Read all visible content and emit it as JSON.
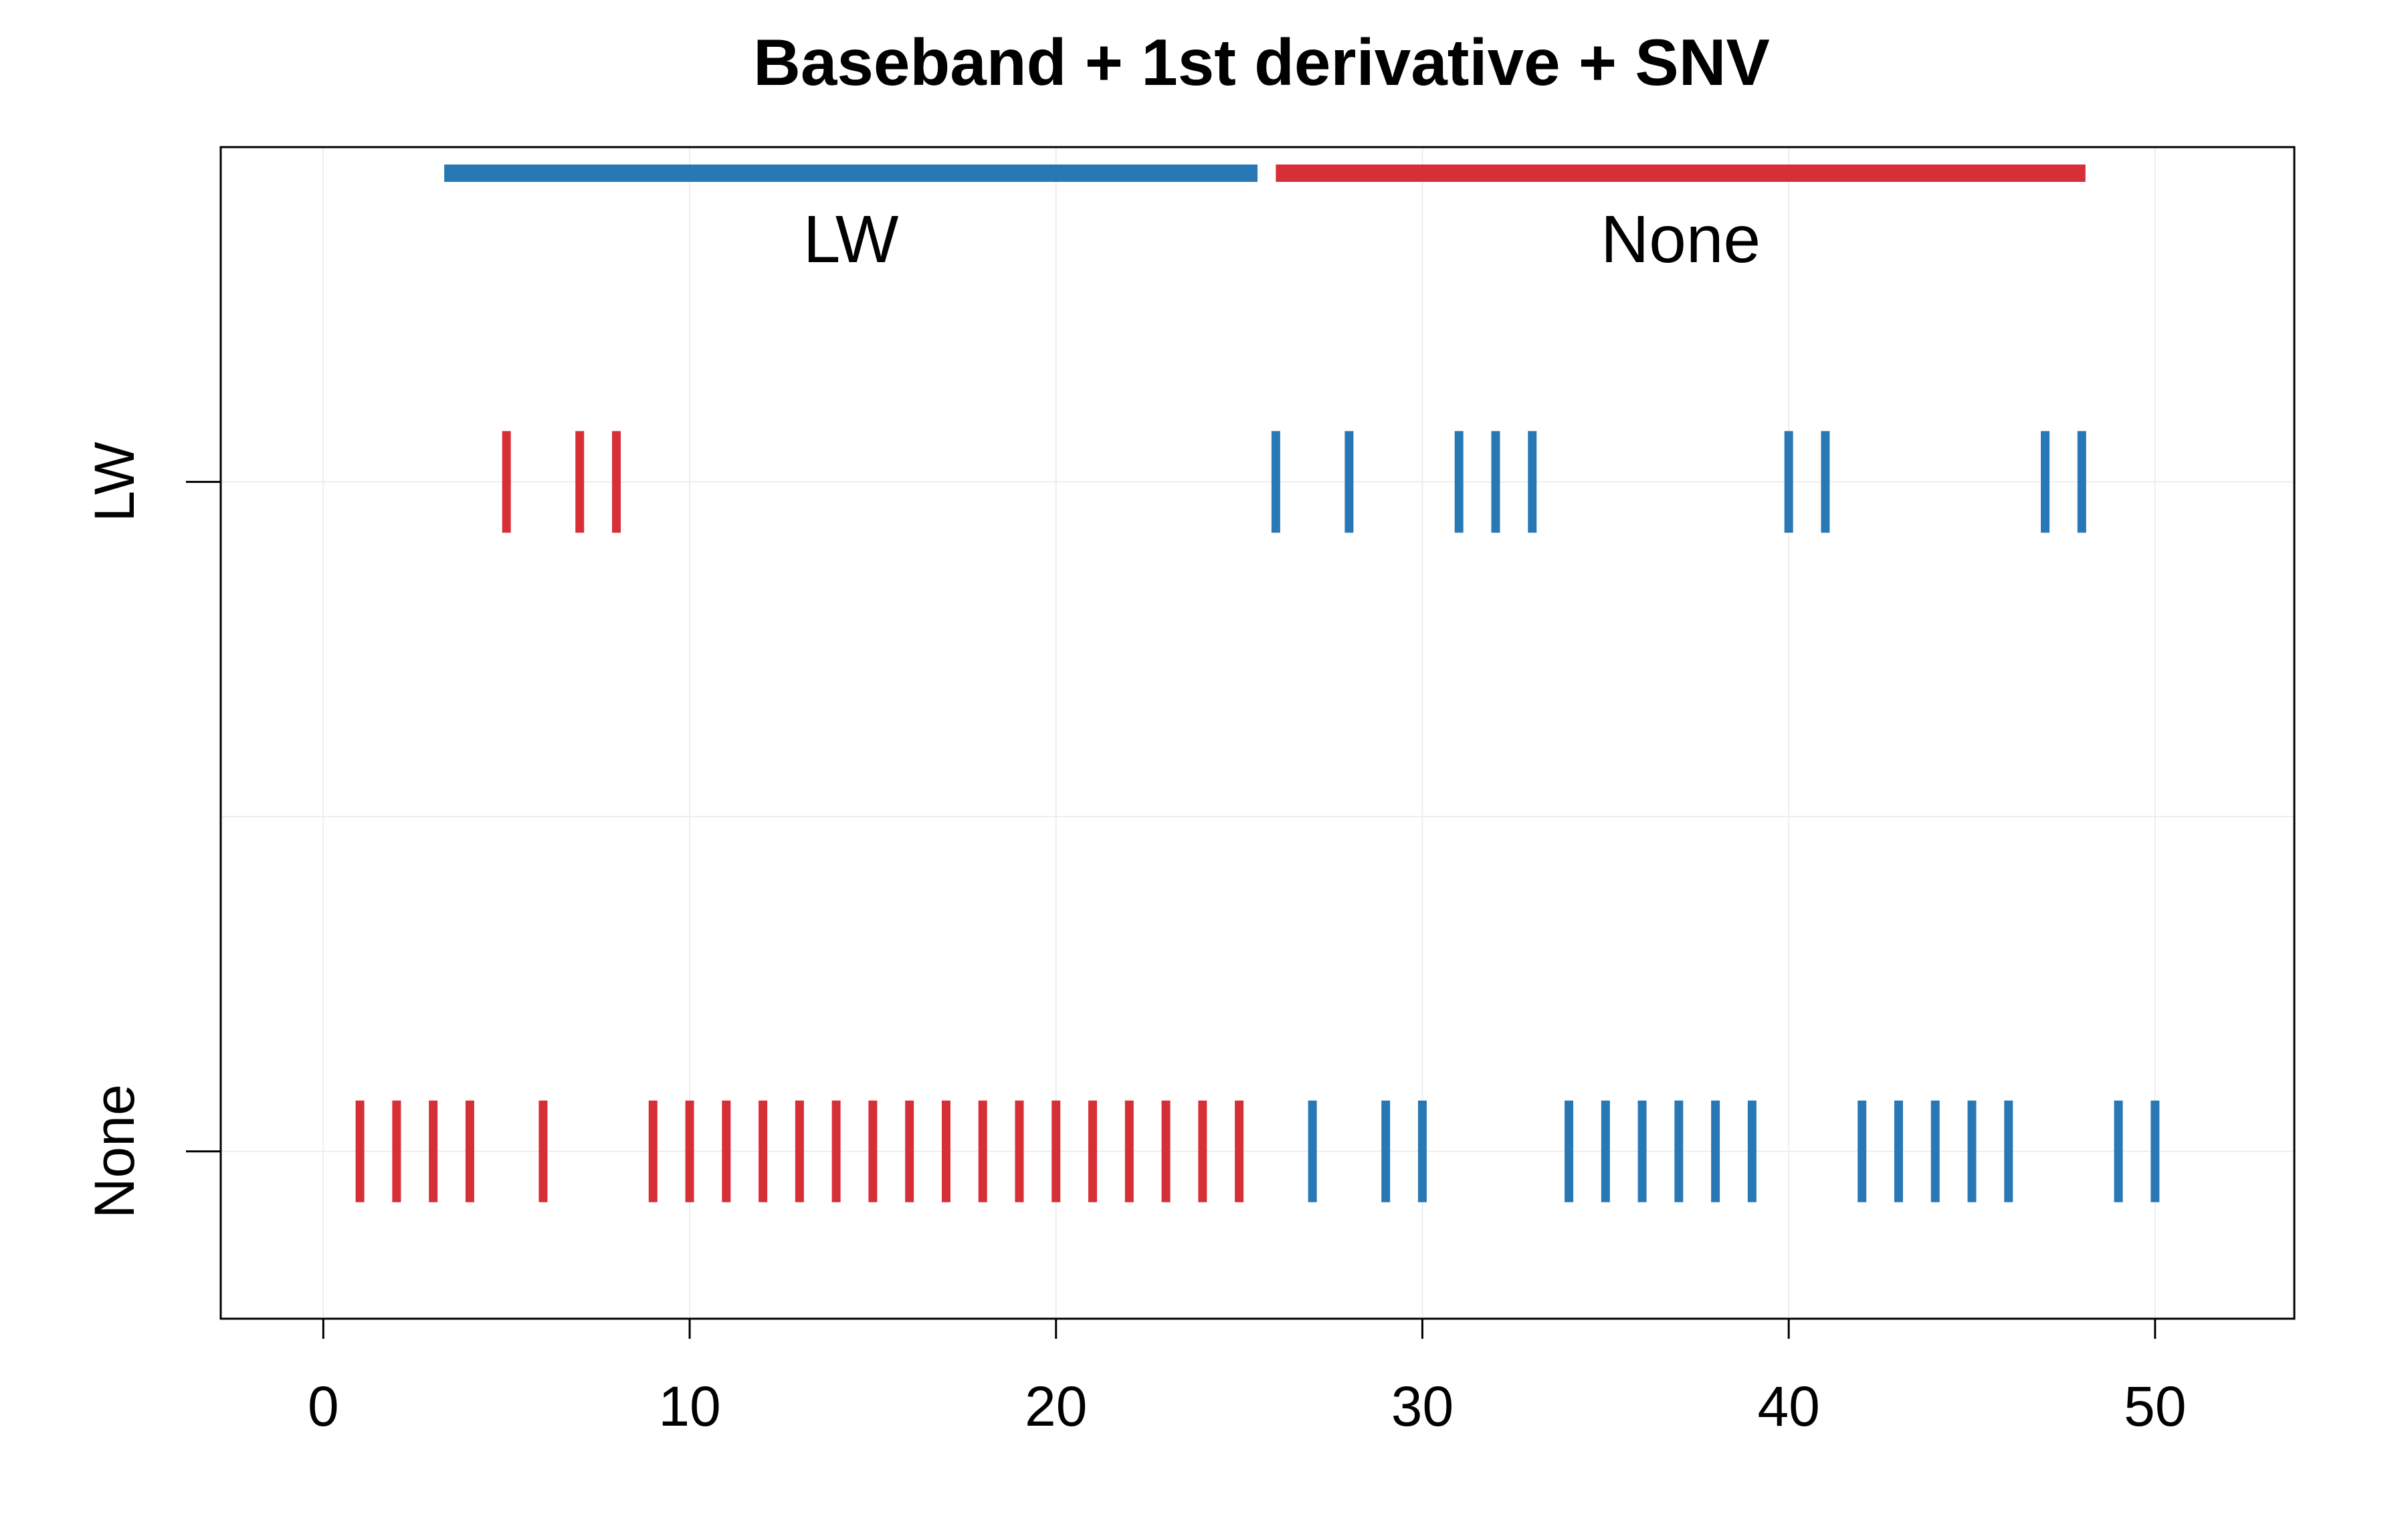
{
  "chart_data": {
    "type": "strip",
    "title": "Baseband + 1st derivative + SNV",
    "xlabel": "",
    "ylabel": "",
    "xlim": [
      -2.8,
      53.8
    ],
    "ylim": [
      0.75,
      2.5
    ],
    "x_ticks": [
      0,
      10,
      20,
      30,
      40,
      50
    ],
    "x_tick_labels": [
      "0",
      "10",
      "20",
      "30",
      "40",
      "50"
    ],
    "y_categories": [
      "LW",
      "None"
    ],
    "y_positions": [
      2,
      1
    ],
    "grid": true,
    "colors": {
      "blue": "#2878b5",
      "red": "#d62f36"
    },
    "group_bars": [
      {
        "label": "LW",
        "x_start": 3.3,
        "x_end": 25.5,
        "color": "#2878b5"
      },
      {
        "label": "None",
        "x_start": 26.0,
        "x_end": 48.1,
        "color": "#d62f36"
      }
    ],
    "series": [
      {
        "category": "LW",
        "color": "#d62f36",
        "x": [
          5,
          7,
          8
        ]
      },
      {
        "category": "LW",
        "color": "#2878b5",
        "x": [
          26,
          28,
          31,
          32,
          33,
          40,
          41,
          47,
          48
        ]
      },
      {
        "category": "None",
        "color": "#d62f36",
        "x": [
          1,
          2,
          3,
          4,
          6,
          9,
          10,
          11,
          12,
          13,
          14,
          15,
          16,
          17,
          18,
          19,
          20,
          21,
          22,
          23,
          24,
          25
        ]
      },
      {
        "category": "None",
        "color": "#2878b5",
        "x": [
          27,
          29,
          30,
          34,
          35,
          36,
          37,
          38,
          39,
          42,
          43,
          44,
          45,
          46,
          49,
          50
        ]
      }
    ]
  }
}
